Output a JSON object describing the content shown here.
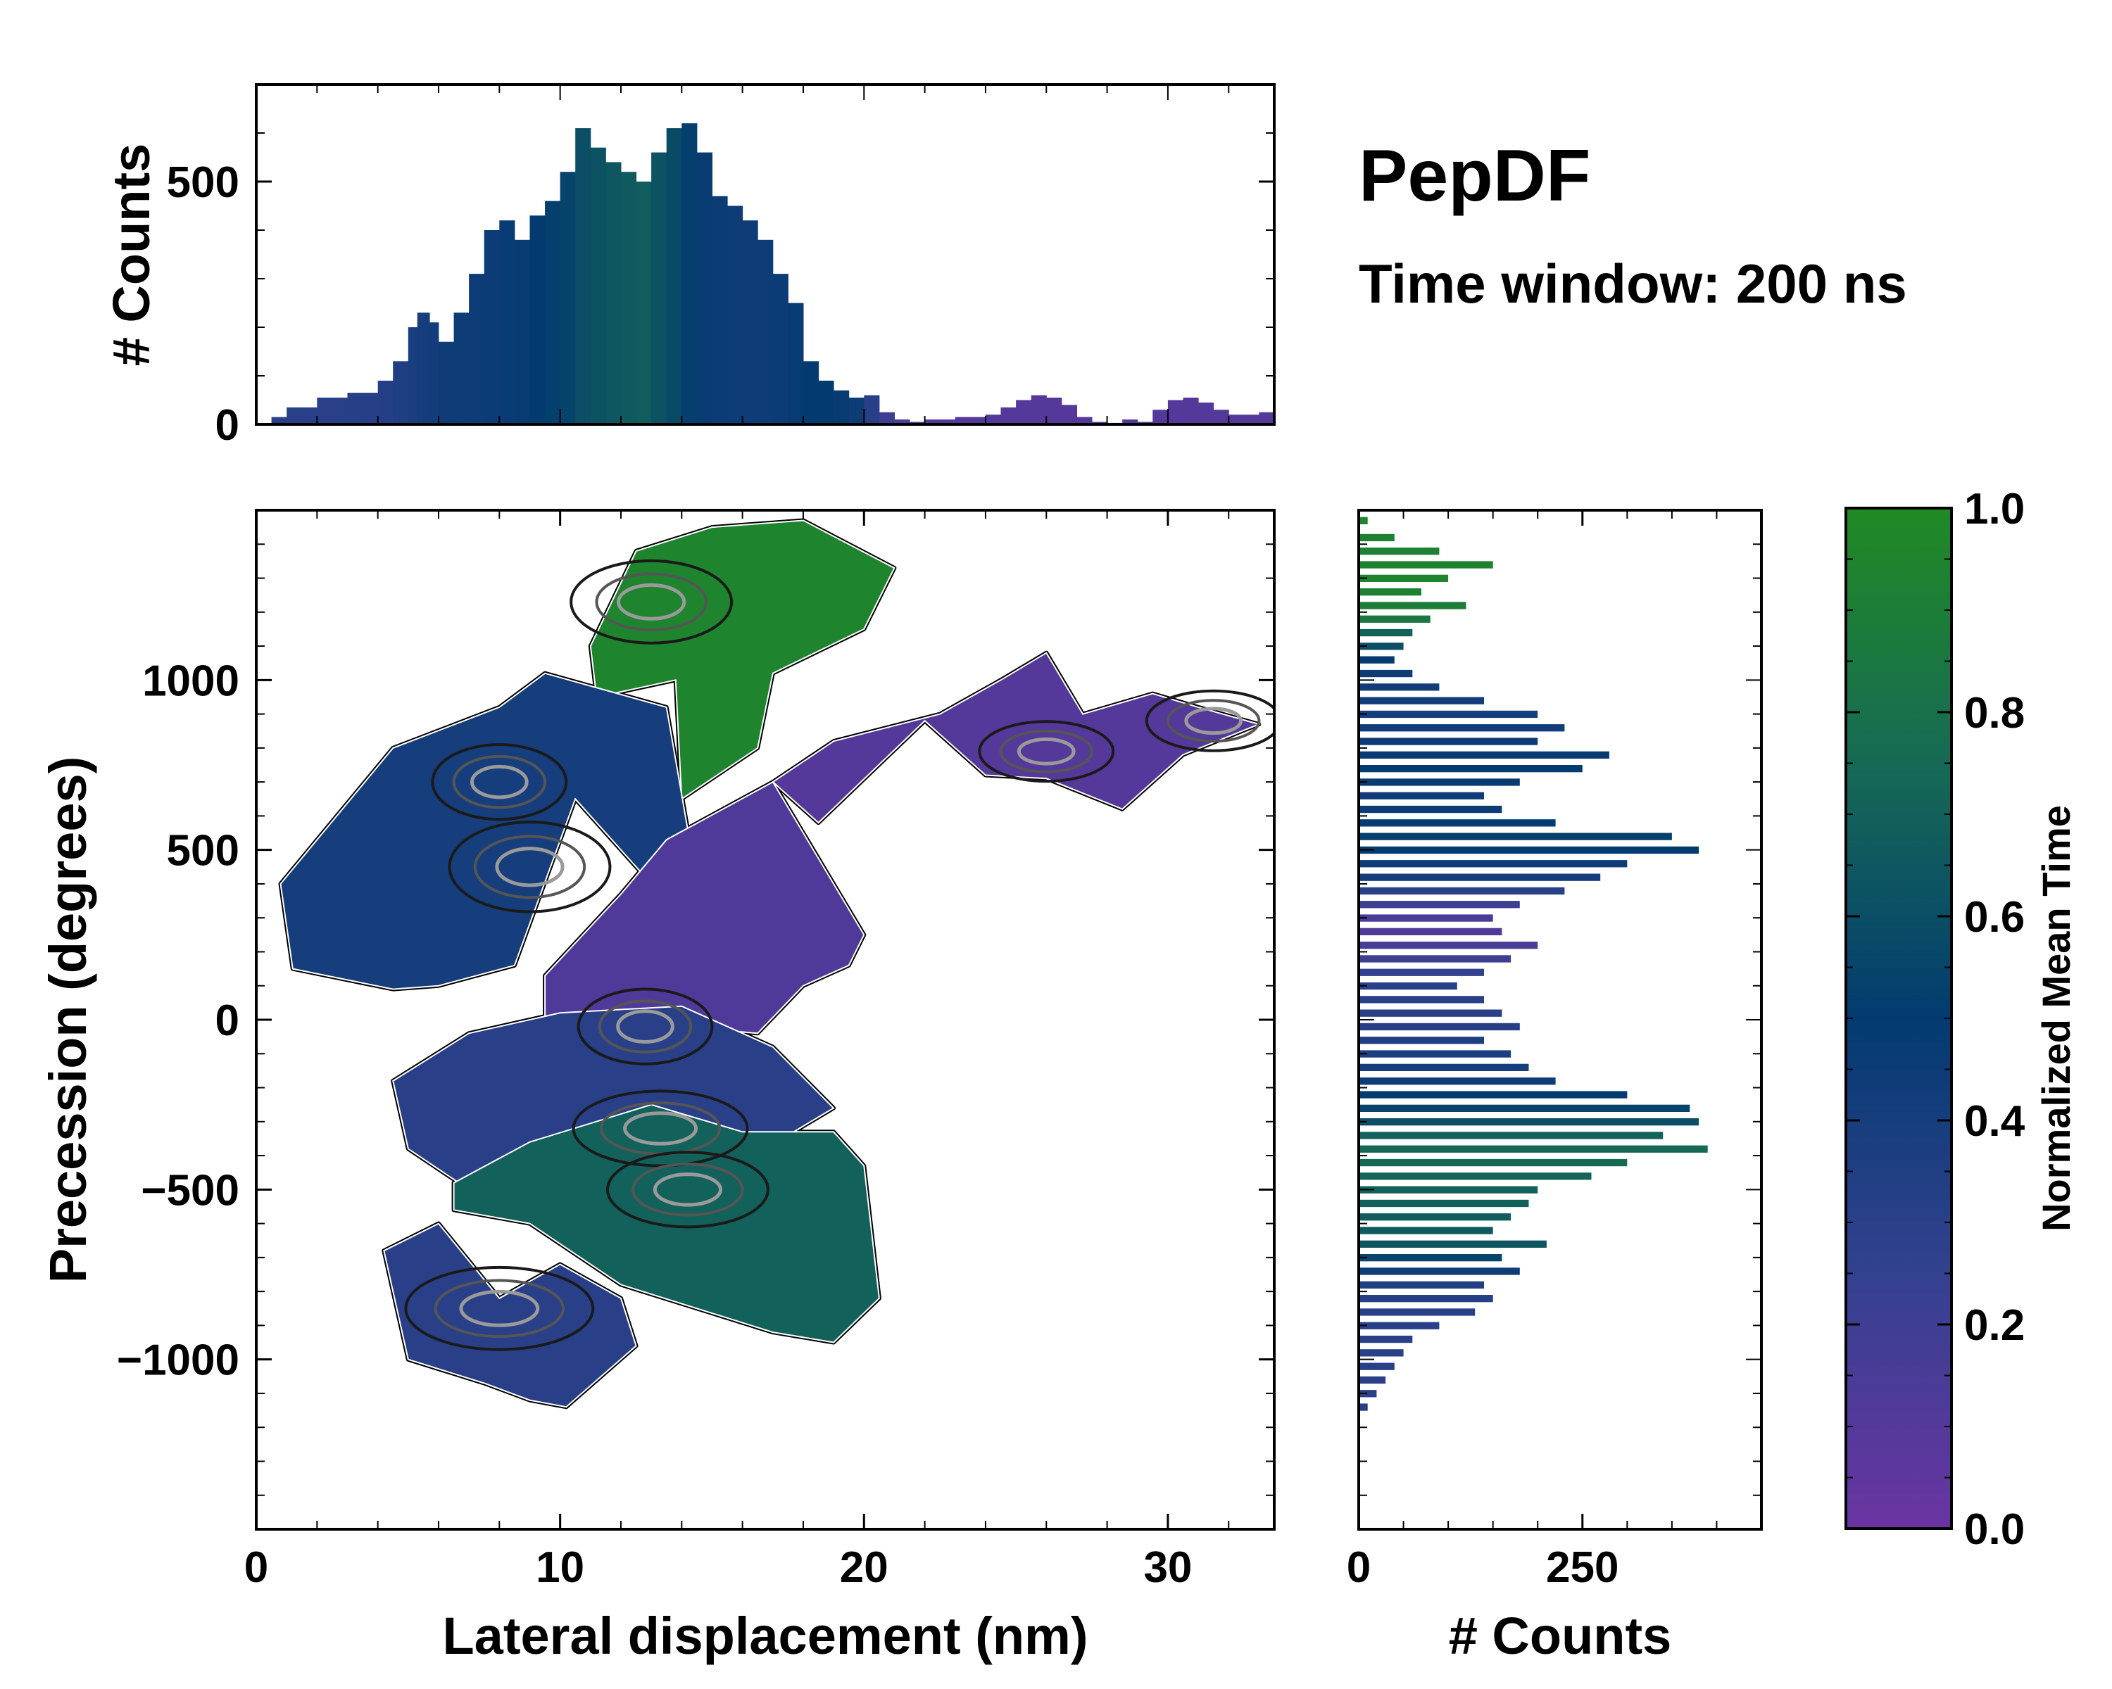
{
  "figure": {
    "title": "PepDF",
    "subtitle": "Time window: 200 ns"
  },
  "colors": {
    "purple": "#6a34a2",
    "indigo": "#33418f",
    "navy": "#033b70",
    "teal": "#166a55",
    "green": "#218a24",
    "contour": "#1a1a1a",
    "contour_light": "#9a9a9a",
    "frame": "#000000"
  },
  "chart_data": [
    {
      "id": "main",
      "type": "heatmap",
      "xlabel": "Lateral displacement (nm)",
      "ylabel": "Precession (degrees)",
      "xlim": [
        0,
        33.5
      ],
      "ylim": [
        -1500,
        1500
      ],
      "xticks": [
        0,
        10,
        20,
        30
      ],
      "yticks": [
        -1000,
        -500,
        0,
        500,
        1000
      ],
      "ytick_labels": [
        "−1000",
        "−500",
        "0",
        "500",
        "1000"
      ],
      "colormap_stops": [
        0.0,
        0.25,
        0.5,
        0.75,
        1.0
      ],
      "regions": [
        {
          "name": "upper-green",
          "time": 0.95,
          "x": [
            11,
            12.5,
            15,
            18,
            21,
            20,
            17,
            16.5,
            14,
            13.8,
            11.2
          ],
          "y": [
            1100,
            1380,
            1450,
            1470,
            1330,
            1150,
            1020,
            800,
            650,
            1000,
            950
          ]
        },
        {
          "name": "upper-left-navy",
          "time": 0.4,
          "x": [
            0.8,
            4.5,
            8,
            9.5,
            13.5,
            14.2,
            13.2,
            10.5,
            8.5,
            6,
            4.5,
            1.2
          ],
          "y": [
            400,
            800,
            920,
            1020,
            920,
            560,
            380,
            650,
            160,
            100,
            90,
            150
          ]
        },
        {
          "name": "center-purple",
          "time": 0.12,
          "x": [
            9.5,
            12,
            13.5,
            17,
            20,
            19.5,
            18,
            16.5,
            14,
            11.5,
            9.5
          ],
          "y": [
            130,
            370,
            530,
            700,
            250,
            160,
            100,
            -40,
            -20,
            -130,
            -60
          ]
        },
        {
          "name": "right-arm-purple",
          "time": 0.1,
          "x": [
            17,
            19,
            22.5,
            24.5,
            26,
            27.2,
            29.5,
            31,
            33,
            30.5,
            28.5,
            26,
            24,
            22,
            18.5
          ],
          "y": [
            700,
            820,
            900,
            1000,
            1080,
            900,
            960,
            920,
            870,
            780,
            620,
            710,
            720,
            880,
            580
          ]
        },
        {
          "name": "lower-indigo",
          "time": 0.3,
          "x": [
            4.5,
            7,
            10,
            14,
            17,
            19,
            16,
            13,
            10.5,
            8,
            5
          ],
          "y": [
            -180,
            -40,
            20,
            40,
            -80,
            -260,
            -420,
            -300,
            -420,
            -560,
            -380
          ]
        },
        {
          "name": "lower-teal",
          "time": 0.7,
          "x": [
            6.5,
            9,
            13,
            16,
            19,
            20,
            20.5,
            19,
            17,
            12,
            9,
            6.5
          ],
          "y": [
            -480,
            -360,
            -250,
            -330,
            -330,
            -430,
            -820,
            -950,
            -920,
            -780,
            -600,
            -560
          ]
        },
        {
          "name": "bottom-indigo",
          "time": 0.3,
          "x": [
            4.2,
            6,
            8,
            10,
            12,
            12.5,
            10.2,
            9,
            7.5,
            5
          ],
          "y": [
            -680,
            -600,
            -820,
            -720,
            -820,
            -960,
            -1140,
            -1120,
            -1070,
            -1000
          ]
        }
      ],
      "contour_levels": [
        {
          "x": 13.3,
          "y": -320,
          "rx": 1.3,
          "ry": 50
        },
        {
          "x": 14.2,
          "y": -500,
          "rx": 1.2,
          "ry": 50
        },
        {
          "x": 8,
          "y": 700,
          "rx": 1,
          "ry": 50
        },
        {
          "x": 13,
          "y": 1230,
          "rx": 1.2,
          "ry": 55
        },
        {
          "x": 8,
          "y": -850,
          "rx": 1.4,
          "ry": 55
        },
        {
          "x": 26,
          "y": 790,
          "rx": 1,
          "ry": 40
        },
        {
          "x": 31.5,
          "y": 880,
          "rx": 1,
          "ry": 40
        },
        {
          "x": 9,
          "y": 450,
          "rx": 1.2,
          "ry": 60
        },
        {
          "x": 12.8,
          "y": -20,
          "rx": 1,
          "ry": 50
        }
      ]
    },
    {
      "id": "top-hist",
      "type": "bar",
      "ylabel": "# Counts",
      "xlim": [
        0,
        33.5
      ],
      "ylim": [
        0,
        700
      ],
      "yticks": [
        0,
        500
      ],
      "bin_width": 0.25,
      "x": [
        0.5,
        1,
        2,
        3,
        4,
        4.5,
        5,
        5.3,
        5.7,
        6,
        6.5,
        7,
        7.5,
        8,
        8.5,
        9,
        9.5,
        10,
        10.5,
        11,
        11.5,
        12,
        12.5,
        13,
        13.5,
        14,
        14.5,
        15,
        15.5,
        16,
        16.5,
        17,
        17.5,
        18,
        18.5,
        19,
        19.5,
        20,
        20.5,
        21,
        21.5,
        22,
        23,
        24,
        24.5,
        25,
        25.5,
        26,
        26.5,
        27,
        27.5,
        28,
        28.5,
        29,
        29.5,
        30,
        30.5,
        31,
        31.5,
        32,
        33
      ],
      "values": [
        15,
        35,
        55,
        65,
        90,
        130,
        200,
        230,
        210,
        170,
        230,
        310,
        400,
        420,
        380,
        430,
        460,
        520,
        610,
        570,
        540,
        520,
        500,
        560,
        610,
        620,
        560,
        470,
        450,
        420,
        380,
        310,
        250,
        130,
        90,
        70,
        55,
        60,
        25,
        10,
        5,
        10,
        15,
        20,
        35,
        50,
        60,
        55,
        40,
        15,
        5,
        3,
        10,
        5,
        30,
        50,
        55,
        45,
        30,
        20,
        25
      ],
      "times": [
        0.3,
        0.3,
        0.3,
        0.32,
        0.33,
        0.35,
        0.38,
        0.4,
        0.42,
        0.44,
        0.45,
        0.45,
        0.46,
        0.47,
        0.48,
        0.5,
        0.52,
        0.55,
        0.6,
        0.62,
        0.65,
        0.66,
        0.68,
        0.62,
        0.58,
        0.52,
        0.48,
        0.46,
        0.45,
        0.45,
        0.45,
        0.46,
        0.48,
        0.5,
        0.5,
        0.48,
        0.45,
        0.3,
        0.2,
        0.12,
        0.1,
        0.1,
        0.1,
        0.1,
        0.1,
        0.1,
        0.1,
        0.1,
        0.1,
        0.1,
        0.1,
        0.1,
        0.1,
        0.1,
        0.1,
        0.1,
        0.1,
        0.1,
        0.1,
        0.1,
        0.1
      ]
    },
    {
      "id": "right-hist",
      "type": "bar",
      "orientation": "horizontal",
      "xlabel": "# Counts",
      "xlim": [
        0,
        450
      ],
      "xticks": [
        0,
        250
      ],
      "ylim": [
        -1500,
        1500
      ],
      "bin_width": 20,
      "y": [
        1470,
        1420,
        1380,
        1340,
        1300,
        1260,
        1220,
        1180,
        1140,
        1100,
        1060,
        1020,
        980,
        940,
        900,
        860,
        820,
        780,
        740,
        700,
        660,
        620,
        580,
        540,
        500,
        460,
        420,
        380,
        340,
        300,
        260,
        220,
        180,
        140,
        100,
        60,
        20,
        -20,
        -60,
        -100,
        -140,
        -180,
        -220,
        -260,
        -300,
        -340,
        -380,
        -420,
        -460,
        -500,
        -540,
        -580,
        -620,
        -660,
        -700,
        -740,
        -780,
        -820,
        -860,
        -900,
        -940,
        -980,
        -1020,
        -1060,
        -1100,
        -1140
      ],
      "values": [
        10,
        40,
        90,
        150,
        100,
        70,
        120,
        80,
        60,
        50,
        40,
        60,
        90,
        140,
        200,
        230,
        200,
        280,
        250,
        180,
        140,
        160,
        220,
        350,
        380,
        300,
        270,
        230,
        180,
        150,
        160,
        200,
        170,
        140,
        110,
        140,
        160,
        180,
        140,
        170,
        190,
        220,
        300,
        370,
        380,
        340,
        390,
        300,
        260,
        200,
        190,
        170,
        150,
        210,
        160,
        180,
        140,
        150,
        130,
        90,
        60,
        50,
        40,
        30,
        20,
        10
      ],
      "times": [
        0.95,
        0.93,
        0.92,
        0.94,
        0.95,
        0.93,
        0.9,
        0.85,
        0.7,
        0.6,
        0.5,
        0.45,
        0.42,
        0.42,
        0.4,
        0.42,
        0.45,
        0.48,
        0.5,
        0.48,
        0.45,
        0.46,
        0.5,
        0.52,
        0.5,
        0.45,
        0.4,
        0.3,
        0.2,
        0.15,
        0.12,
        0.15,
        0.2,
        0.25,
        0.3,
        0.3,
        0.3,
        0.32,
        0.35,
        0.38,
        0.4,
        0.45,
        0.5,
        0.55,
        0.6,
        0.7,
        0.75,
        0.75,
        0.72,
        0.7,
        0.7,
        0.68,
        0.66,
        0.65,
        0.55,
        0.45,
        0.35,
        0.32,
        0.3,
        0.3,
        0.3,
        0.3,
        0.3,
        0.3,
        0.3,
        0.3
      ]
    },
    {
      "id": "colorbar",
      "type": "colorbar",
      "label": "Normalized Mean Time",
      "range": [
        0,
        1
      ],
      "ticks": [
        0.0,
        0.2,
        0.4,
        0.6,
        0.8,
        1.0
      ],
      "tick_labels": [
        "0.0",
        "0.2",
        "0.4",
        "0.6",
        "0.8",
        "1.0"
      ]
    }
  ]
}
